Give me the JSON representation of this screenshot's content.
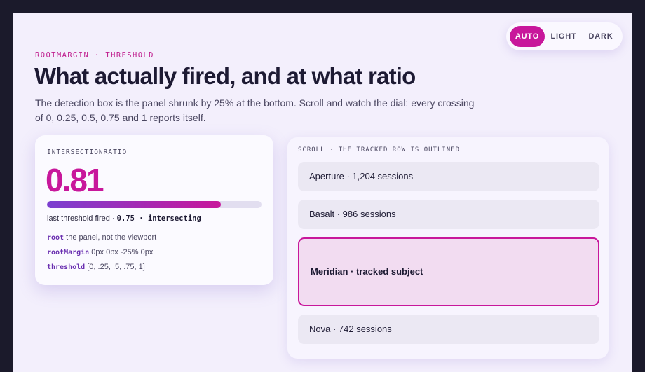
{
  "theme_toggle": {
    "options": [
      "AUTO",
      "LIGHT",
      "DARK"
    ],
    "active": 0
  },
  "header": {
    "eyebrow": "ROOTMARGIN · THRESHOLD",
    "title": "What actually fired, and at what ratio",
    "description": "The detection box is the panel shrunk by 25% at the bottom. Scroll and watch the dial: every crossing of 0, 0.25, 0.5, 0.75 and 1 reports itself."
  },
  "ratio_card": {
    "label": "INTERSECTIONRATIO",
    "ratio_text": "0.81",
    "ratio": 0.81,
    "last_fired_prefix": "last threshold fired ·",
    "last_fired_value": "0.75 · intersecting",
    "config": [
      {
        "key": "root",
        "value": "the panel, not the viewport"
      },
      {
        "key": "rootMargin",
        "value": "0px 0px -25% 0px"
      },
      {
        "key": "threshold",
        "value": "[0, .25, .5, .75, 1]"
      }
    ]
  },
  "scroll_panel": {
    "label": "SCROLL · THE TRACKED ROW IS OUTLINED",
    "rows": [
      "Aperture · 1,204 sessions",
      "Basalt · 986 sessions",
      "Meridian · tracked subject",
      "Nova · 742 sessions"
    ],
    "tracked": 2
  }
}
